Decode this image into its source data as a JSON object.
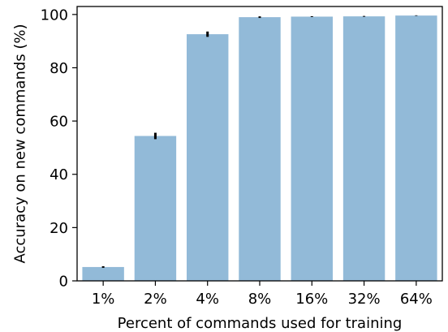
{
  "chart_data": {
    "type": "bar",
    "title": "",
    "xlabel": "Percent of commands used for training",
    "ylabel": "Accuracy on new commands (%)",
    "categories": [
      "1%",
      "2%",
      "4%",
      "8%",
      "16%",
      "32%",
      "64%"
    ],
    "values": [
      5.2,
      54.4,
      92.6,
      99.0,
      99.2,
      99.3,
      99.6
    ],
    "errors": [
      0.3,
      1.2,
      1.0,
      0.3,
      0.15,
      0.15,
      0.1
    ],
    "ylim": [
      0,
      103
    ],
    "yticks": [
      0,
      20,
      40,
      60,
      80,
      100
    ],
    "bar_color": "#92bad8",
    "error_color": "#000000",
    "grid": false,
    "legend": "none"
  }
}
